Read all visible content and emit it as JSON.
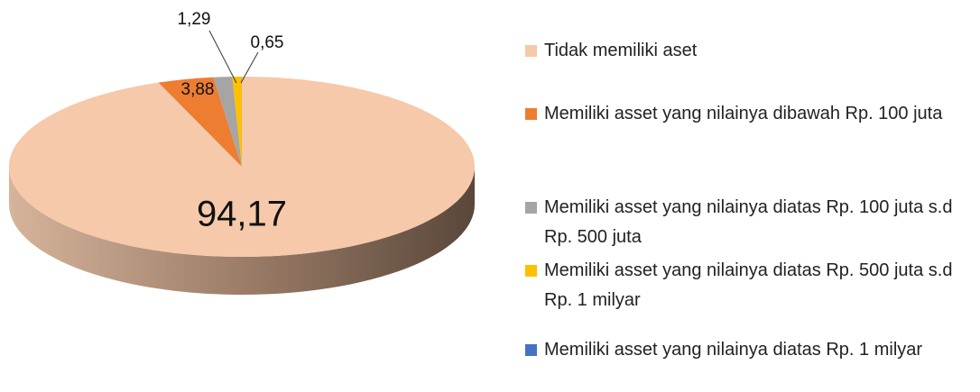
{
  "chart_data": {
    "type": "pie",
    "categories": [
      "Tidak memiliki aset",
      "Memiliki asset yang nilainya dibawah Rp. 100 juta",
      "Memiliki asset yang nilainya diatas Rp. 100 juta s.d Rp. 500 juta",
      "Memiliki asset yang nilainya diatas Rp. 500 juta s.d Rp. 1 milyar",
      "Memiliki asset yang nilainya diatas Rp. 1 milyar"
    ],
    "values": [
      94.17,
      3.88,
      1.29,
      0.65,
      0.01
    ],
    "value_labels": [
      "94,17",
      "3,88",
      "1,29",
      "0,65",
      null
    ],
    "colors": [
      "#f5c9a9",
      "#ed7d31",
      "#a5a5a5",
      "#ffc000",
      "#4472c4"
    ],
    "legend": "right"
  }
}
